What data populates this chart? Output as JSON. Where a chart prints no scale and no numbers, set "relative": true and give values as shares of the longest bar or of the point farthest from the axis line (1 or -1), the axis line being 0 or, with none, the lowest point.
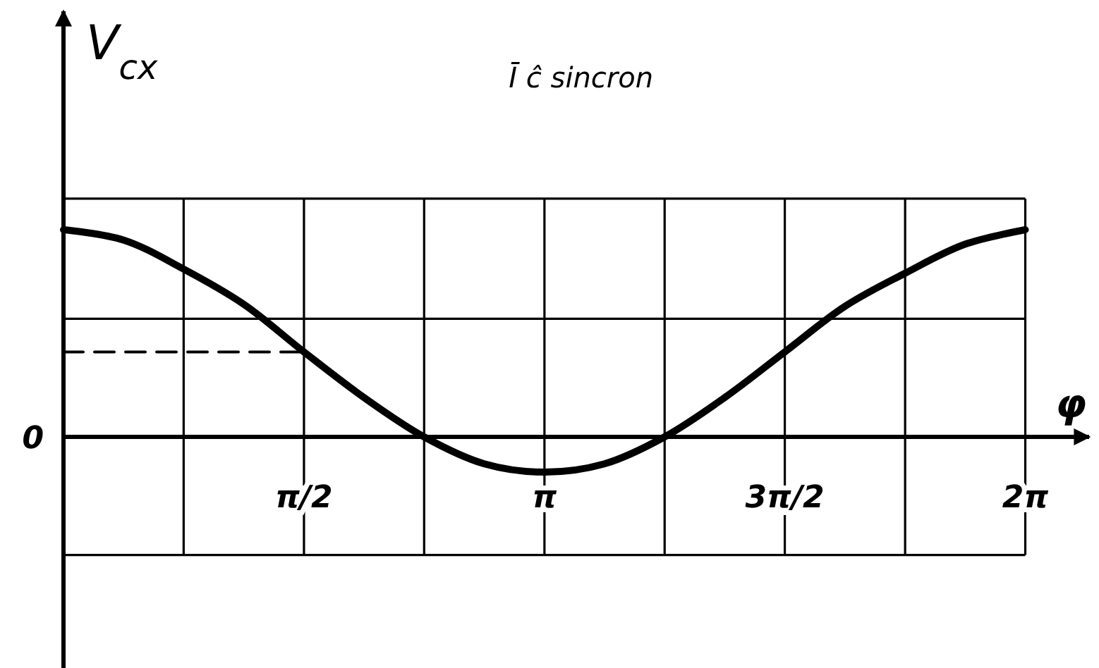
{
  "chart_data": {
    "type": "line",
    "title": "Ī ĉ sincron",
    "xlabel": "φ",
    "ylabel": "V$_{cx}$",
    "annotations": [
      "0"
    ],
    "relative": true,
    "xlim": [
      0,
      6.7
    ],
    "xticks": [
      {
        "value": 0.785,
        "label": null
      },
      {
        "value": 1.571,
        "label": "π/2"
      },
      {
        "value": 2.356,
        "label": null
      },
      {
        "value": 3.142,
        "label": "π"
      },
      {
        "value": 3.927,
        "label": null
      },
      {
        "value": 4.712,
        "label": "3π/2"
      },
      {
        "value": 5.498,
        "label": null
      },
      {
        "value": 6.283,
        "label": "2π"
      }
    ],
    "grid": "x",
    "ref_lines": [
      {
        "axis": "y",
        "value": 1.15
      },
      {
        "axis": "y",
        "value": 0.57
      },
      {
        "axis": "y",
        "value": -0.57
      }
    ],
    "series": [
      {
        "color": "#000000",
        "x": [
          0,
          0.393,
          0.785,
          1.178,
          1.571,
          1.963,
          2.356,
          2.749,
          3.142,
          3.534,
          3.927,
          4.32,
          4.712,
          5.105,
          5.498,
          5.89,
          6.283
        ],
        "values": [
          1,
          0.95,
          0.81,
          0.64,
          0.41,
          0.19,
          0,
          -0.13,
          -0.17,
          -0.13,
          0,
          0.19,
          0.41,
          0.63,
          0.79,
          0.93,
          1
        ]
      },
      {
        "type": "line",
        "color": "#000000",
        "line_style": "dashed",
        "x": [
          0,
          1.571
        ],
        "values": [
          0.41,
          0.41
        ]
      }
    ]
  }
}
